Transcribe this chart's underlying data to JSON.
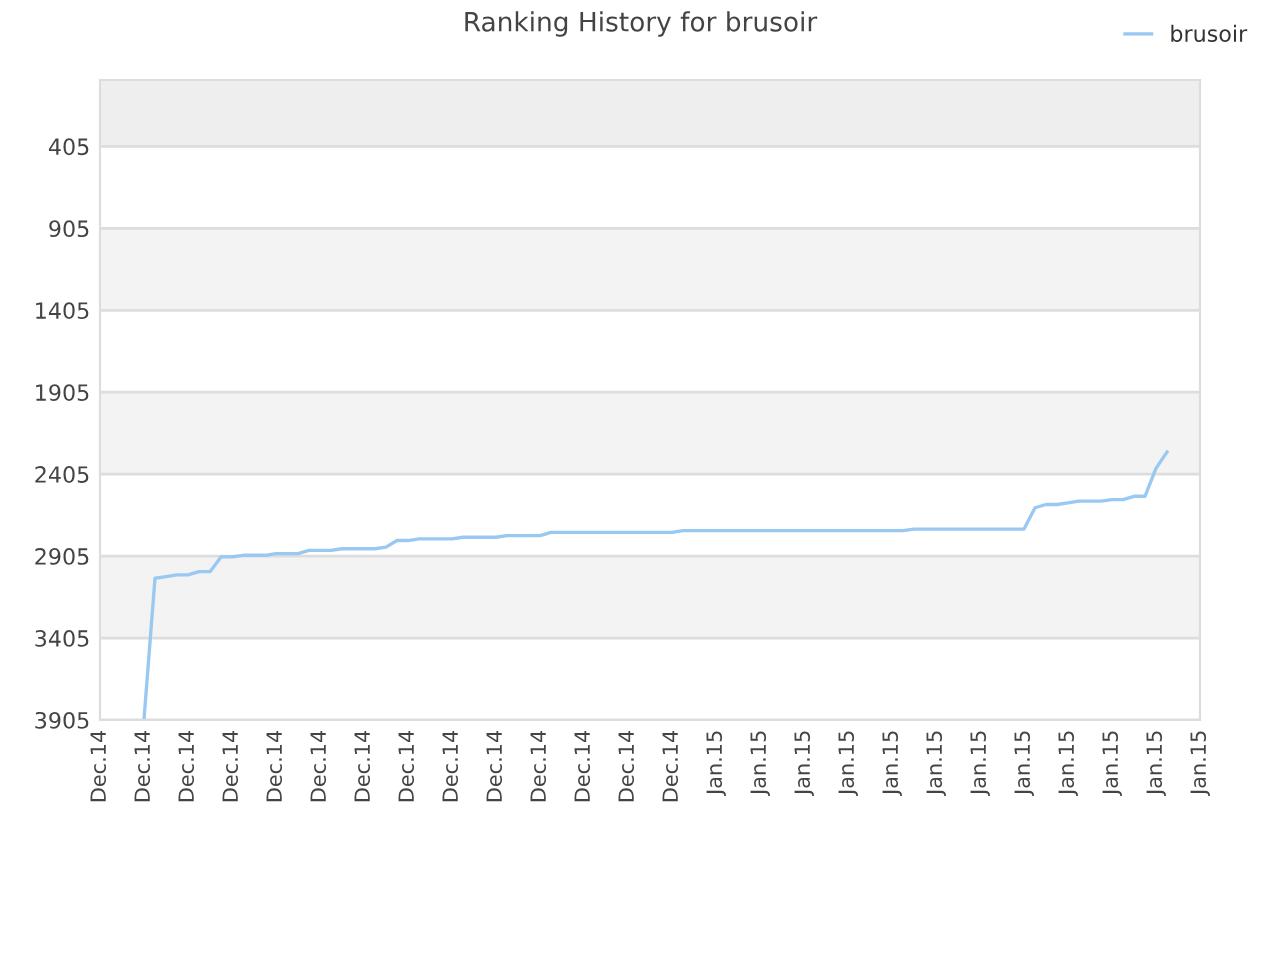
{
  "chart_data": {
    "type": "line",
    "title": "Ranking History for brusoir",
    "categories": [
      "Dec.14",
      null,
      null,
      null,
      "Dec.14",
      null,
      null,
      null,
      "Dec.14",
      null,
      null,
      null,
      "Dec.14",
      null,
      null,
      null,
      "Dec.14",
      null,
      null,
      null,
      "Dec.14",
      null,
      null,
      null,
      "Dec.14",
      null,
      null,
      null,
      "Dec.14",
      null,
      null,
      null,
      "Dec.14",
      null,
      null,
      null,
      "Dec.14",
      null,
      null,
      null,
      "Dec.14",
      null,
      null,
      null,
      "Dec.14",
      null,
      null,
      null,
      "Dec.14",
      null,
      null,
      null,
      "Dec.14",
      null,
      null,
      null,
      "Jan.15",
      null,
      null,
      null,
      "Jan.15",
      null,
      null,
      null,
      "Jan.15",
      null,
      null,
      null,
      "Jan.15",
      null,
      null,
      null,
      "Jan.15",
      null,
      null,
      null,
      "Jan.15",
      null,
      null,
      null,
      "Jan.15",
      null,
      null,
      null,
      "Jan.15",
      null,
      null,
      null,
      "Jan.15",
      null,
      null,
      null,
      "Jan.15",
      null,
      null,
      null,
      "Jan.15",
      null,
      null,
      null,
      "Jan.15"
    ],
    "ylim": [
      3905,
      0
    ],
    "yticks": [
      405,
      905,
      1405,
      1905,
      2405,
      2905,
      3405,
      3905
    ],
    "grid": "y",
    "legend": "top right",
    "marker": "none",
    "line_style": "solid",
    "series": [
      {
        "name": "brusoir",
        "color": "#99c8f2",
        "values": [
          null,
          null,
          null,
          null,
          3900,
          3040,
          3030,
          3020,
          3020,
          3000,
          3000,
          2910,
          2910,
          2900,
          2900,
          2900,
          2890,
          2890,
          2890,
          2870,
          2870,
          2870,
          2860,
          2860,
          2860,
          2860,
          2850,
          2810,
          2810,
          2800,
          2800,
          2800,
          2800,
          2790,
          2790,
          2790,
          2790,
          2780,
          2780,
          2780,
          2780,
          2760,
          2760,
          2760,
          2760,
          2760,
          2760,
          2760,
          2760,
          2760,
          2760,
          2760,
          2760,
          2750,
          2750,
          2750,
          2750,
          2750,
          2750,
          2750,
          2750,
          2750,
          2750,
          2750,
          2750,
          2750,
          2750,
          2750,
          2750,
          2750,
          2750,
          2750,
          2750,
          2750,
          2740,
          2740,
          2740,
          2740,
          2740,
          2740,
          2740,
          2740,
          2740,
          2740,
          2740,
          2610,
          2590,
          2590,
          2580,
          2570,
          2570,
          2570,
          2560,
          2560,
          2540,
          2540,
          2370,
          2270,
          null,
          null,
          null
        ]
      }
    ]
  }
}
